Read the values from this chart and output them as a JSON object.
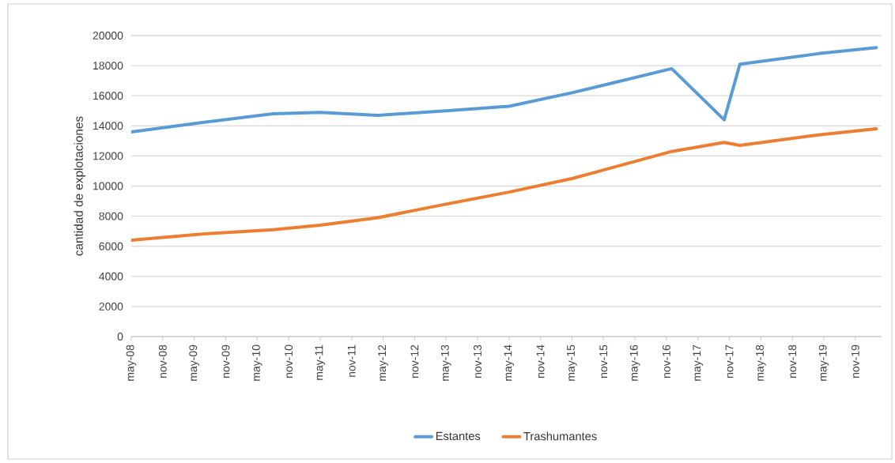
{
  "chart_data": {
    "type": "line",
    "ylabel": "cantidad de explotaciones",
    "x": [
      "2008-05",
      "2009-06",
      "2010-08",
      "2011-05",
      "2012-04",
      "2013-05",
      "2014-05",
      "2015-05",
      "2016-12",
      "2017-10",
      "2018-01",
      "2019-04",
      "2020-03"
    ],
    "series": [
      {
        "name": "Estantes",
        "color": "#5b9bd5",
        "values": [
          13600,
          14200,
          14800,
          14900,
          14700,
          15000,
          15300,
          16200,
          17800,
          14400,
          18100,
          18800,
          19200
        ]
      },
      {
        "name": "Trashumantes",
        "color": "#ed7d31",
        "values": [
          6400,
          6800,
          7100,
          7400,
          7900,
          8800,
          9600,
          10500,
          12300,
          12900,
          12700,
          13400,
          13800
        ]
      }
    ],
    "xlim": [
      "2008-05",
      "2020-04"
    ],
    "xticks": [
      {
        "value": "2008-05",
        "label": "may-08"
      },
      {
        "value": "2008-11",
        "label": "nov-08"
      },
      {
        "value": "2009-05",
        "label": "may-09"
      },
      {
        "value": "2009-11",
        "label": "nov-09"
      },
      {
        "value": "2010-05",
        "label": "may-10"
      },
      {
        "value": "2010-11",
        "label": "nov-10"
      },
      {
        "value": "2011-05",
        "label": "may-11"
      },
      {
        "value": "2011-11",
        "label": "nov-11"
      },
      {
        "value": "2012-05",
        "label": "may-12"
      },
      {
        "value": "2012-11",
        "label": "nov-12"
      },
      {
        "value": "2013-05",
        "label": "may-13"
      },
      {
        "value": "2013-11",
        "label": "nov-13"
      },
      {
        "value": "2014-05",
        "label": "may-14"
      },
      {
        "value": "2014-11",
        "label": "nov-14"
      },
      {
        "value": "2015-05",
        "label": "may-15"
      },
      {
        "value": "2015-11",
        "label": "nov-15"
      },
      {
        "value": "2016-05",
        "label": "may-16"
      },
      {
        "value": "2016-11",
        "label": "nov-16"
      },
      {
        "value": "2017-05",
        "label": "may-17"
      },
      {
        "value": "2017-11",
        "label": "nov-17"
      },
      {
        "value": "2018-05",
        "label": "may-18"
      },
      {
        "value": "2018-11",
        "label": "nov-18"
      },
      {
        "value": "2019-05",
        "label": "may-19"
      },
      {
        "value": "2019-11",
        "label": "nov-19"
      }
    ],
    "ylim": [
      0,
      20000
    ],
    "yticks": [
      0,
      2000,
      4000,
      6000,
      8000,
      10000,
      12000,
      14000,
      16000,
      18000,
      20000
    ],
    "grid": "y",
    "legend": "bottom"
  }
}
